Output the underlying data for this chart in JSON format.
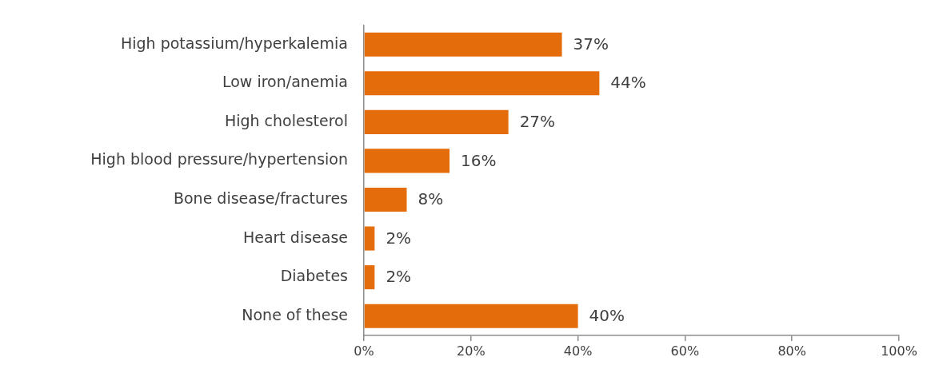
{
  "chart_data": {
    "type": "bar",
    "orientation": "horizontal",
    "categories": [
      "High potassium/hyperkalemia",
      "Low iron/anemia",
      "High cholesterol",
      "High blood pressure/hypertension",
      "Bone disease/fractures",
      "Heart disease",
      "Diabetes",
      "None of these"
    ],
    "values": [
      37,
      44,
      27,
      16,
      8,
      2,
      2,
      40
    ],
    "color": "#e46c0a",
    "value_labels": [
      "37%",
      "44%",
      "27%",
      "16%",
      "8%",
      "2%",
      "2%",
      "40%"
    ],
    "xlim": [
      0,
      100
    ],
    "xticks": [
      {
        "value": 0,
        "label": "0%"
      },
      {
        "value": 20,
        "label": "20%"
      },
      {
        "value": 40,
        "label": "40%"
      },
      {
        "value": 60,
        "label": "60%"
      },
      {
        "value": 80,
        "label": "80%"
      },
      {
        "value": 100,
        "label": "100%"
      }
    ],
    "legend": false
  }
}
